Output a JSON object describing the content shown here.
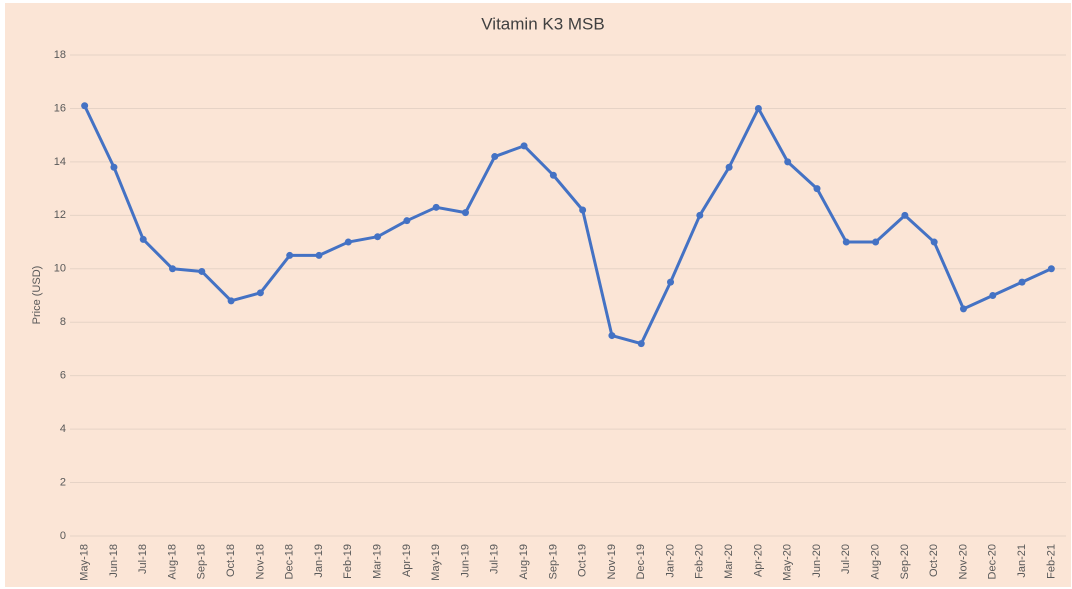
{
  "chart_data": {
    "type": "line",
    "title": "Vitamin K3 MSB",
    "y_label": "Price (USD)",
    "categories": [
      "May-18",
      "Jun-18",
      "Jul-18",
      "Aug-18",
      "Sep-18",
      "Oct-18",
      "Nov-18",
      "Dec-18",
      "Jan-19",
      "Feb-19",
      "Mar-19",
      "Apr-19",
      "May-19",
      "Jun-19",
      "Jul-19",
      "Aug-19",
      "Sep-19",
      "Oct-19",
      "Nov-19",
      "Dec-19",
      "Jan-20",
      "Feb-20",
      "Mar-20",
      "Apr-20",
      "May-20",
      "Jun-20",
      "Jul-20",
      "Aug-20",
      "Sep-20",
      "Oct-20",
      "Nov-20",
      "Dec-20",
      "Jan-21",
      "Feb-21"
    ],
    "series": [
      {
        "name": "Vitamin K3 MSB",
        "color": "#4472c4",
        "values": [
          16.1,
          13.8,
          11.1,
          10.0,
          9.9,
          8.8,
          9.1,
          10.5,
          10.5,
          11.0,
          11.2,
          11.8,
          12.3,
          12.1,
          14.2,
          14.6,
          13.5,
          12.2,
          7.5,
          7.2,
          9.5,
          12.0,
          13.8,
          16.0,
          14.0,
          13.0,
          11.0,
          11.0,
          12.0,
          11.0,
          8.5,
          9.0,
          9.5,
          10.0
        ]
      }
    ],
    "ylim": [
      0,
      18
    ],
    "yticks": [
      0,
      2,
      4,
      6,
      8,
      10,
      12,
      14,
      16,
      18
    ],
    "grid": true
  }
}
